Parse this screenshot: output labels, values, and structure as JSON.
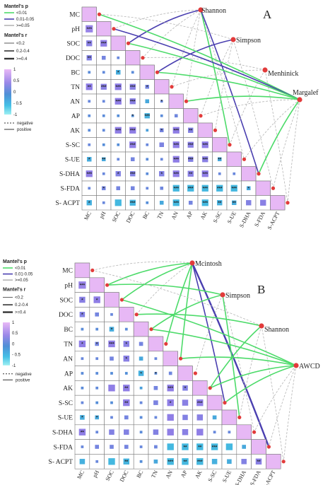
{
  "chart_data": [
    {
      "type": "heatmap",
      "panel": "A",
      "variables": [
        "MC",
        "pH",
        "SOC",
        "DOC",
        "BC",
        "TN",
        "AN",
        "AP",
        "AK",
        "S-SC",
        "S-UE",
        "S-DHA",
        "S-FDA",
        "S- ACPT"
      ],
      "x_tick_labels": [
        "MC",
        "pH",
        "SOC",
        "DOC",
        "BC",
        "TN",
        "AN",
        "AP",
        "AK",
        "S-SC",
        "S-UE",
        "S-DHA",
        "S-FDA",
        "S-ACPT"
      ],
      "correlations": [
        [
          1
        ],
        [
          0.55,
          1
        ],
        [
          0.45,
          0.5,
          1
        ],
        [
          0.4,
          0.3,
          0.2,
          1
        ],
        [
          0.1,
          0.15,
          -0.35,
          0.1,
          1
        ],
        [
          0.5,
          0.45,
          0.5,
          0.45,
          0.3,
          1
        ],
        [
          0.2,
          0.2,
          0.5,
          0.45,
          -0.3,
          0.2,
          1
        ],
        [
          0.1,
          0.1,
          0.05,
          0.02,
          -0.4,
          0.1,
          0.25,
          1
        ],
        [
          0.1,
          0.15,
          0.5,
          0.5,
          -0.2,
          0.3,
          0.5,
          0.4,
          1
        ],
        [
          0.2,
          0.05,
          0.05,
          0.5,
          0.2,
          0.35,
          0.5,
          0.45,
          0.5,
          1
        ],
        [
          -0.35,
          -0.3,
          0.2,
          0.3,
          0.1,
          0.2,
          0.5,
          0.4,
          0.45,
          -0.3,
          1
        ],
        [
          0.5,
          0.2,
          0.4,
          0.4,
          0.1,
          0.4,
          0.5,
          0.45,
          0.5,
          0.2,
          0.2,
          1
        ],
        [
          0.2,
          0.3,
          0.3,
          0.3,
          0.2,
          0.25,
          -0.5,
          -0.5,
          -0.5,
          -0.5,
          -0.5,
          -0.3,
          1
        ],
        [
          -0.4,
          0.2,
          -0.5,
          -0.45,
          0.05,
          -0.3,
          -0.5,
          0.3,
          -0.5,
          -0.4,
          -0.35,
          0.4,
          0.45,
          1
        ]
      ],
      "significance": [
        [
          ""
        ],
        [
          "***",
          ""
        ],
        [
          "**",
          "***",
          ""
        ],
        [
          "**",
          "",
          "",
          ""
        ],
        [
          "",
          "",
          "*",
          "",
          ""
        ],
        [
          "**",
          "***",
          "***",
          "***",
          "*",
          ""
        ],
        [
          "",
          "",
          "***",
          "***",
          "",
          "*",
          ""
        ],
        [
          "",
          "",
          "",
          "*",
          "***",
          "",
          "",
          ""
        ],
        [
          "",
          "",
          "***",
          "***",
          "",
          "*",
          "***",
          "**",
          ""
        ],
        [
          "",
          "",
          "",
          "***",
          "",
          "",
          "***",
          "***",
          "***",
          ""
        ],
        [
          "*",
          "**",
          "",
          "",
          "",
          "",
          "***",
          "***",
          "***",
          "**",
          ""
        ],
        [
          "***",
          "",
          "*",
          "***",
          "",
          "*",
          "***",
          "**",
          "***",
          "",
          "",
          ""
        ],
        [
          "",
          "*",
          "",
          "",
          "",
          "",
          "***",
          "***",
          "***",
          "***",
          "***",
          "*",
          ""
        ],
        [
          "*",
          "",
          "",
          "***",
          "",
          "",
          "***",
          "",
          "***",
          "**",
          "**",
          "",
          ""
        ]
      ],
      "nodes": [
        "Shannon",
        "Simpson",
        "Menhinick",
        "Margalef"
      ],
      "mantel_links": [
        {
          "from": "Shannon",
          "to": "pH",
          "p": ">=0.05",
          "r": "<0.2"
        },
        {
          "from": "Shannon",
          "to": "SOC",
          "p": "0.01-0.05",
          "r": "0.2-0.4"
        },
        {
          "from": "Shannon",
          "to": "DOC",
          "p": ">=0.05",
          "r": "<0.2"
        },
        {
          "from": "Shannon",
          "to": "TN",
          "p": ">=0.05",
          "r": "<0.2"
        },
        {
          "from": "Shannon",
          "to": "AN",
          "p": ">=0.05",
          "r": "<0.2"
        },
        {
          "from": "Shannon",
          "to": "S-SC",
          "p": "<0.01",
          "r": "0.2-0.4"
        },
        {
          "from": "Shannon",
          "to": "S-UE",
          "p": ">=0.05",
          "r": "<0.2"
        },
        {
          "from": "Shannon",
          "to": "S-DHA",
          "p": "0.01-0.05",
          "r": "0.2-0.4"
        },
        {
          "from": "Simpson",
          "to": "MC",
          "p": ">=0.05",
          "r": "<0.2"
        },
        {
          "from": "Simpson",
          "to": "BC",
          "p": "0.01-0.05",
          "r": "0.2-0.4"
        },
        {
          "from": "Simpson",
          "to": "AP",
          "p": ">=0.05",
          "r": "<0.2"
        },
        {
          "from": "Simpson",
          "to": "AK",
          "p": ">=0.05",
          "r": "<0.2"
        },
        {
          "from": "Simpson",
          "to": "S-FDA",
          "p": ">=0.05",
          "r": "<0.2"
        },
        {
          "from": "Menhinick",
          "to": "DOC",
          "p": ">=0.05",
          "r": "<0.2"
        },
        {
          "from": "Menhinick",
          "to": "TN",
          "p": ">=0.05",
          "r": "<0.2"
        },
        {
          "from": "Menhinick",
          "to": "S-SC",
          "p": ">=0.05",
          "r": "<0.2"
        },
        {
          "from": "Menhinick",
          "to": "S-ACPT",
          "p": ">=0.05",
          "r": "<0.2"
        },
        {
          "from": "Margalef",
          "to": "MC",
          "p": "<0.01",
          "r": "0.2-0.4"
        },
        {
          "from": "Margalef",
          "to": "pH",
          "p": "0.01-0.05",
          "r": "0.2-0.4"
        },
        {
          "from": "Margalef",
          "to": "SOC",
          "p": "<0.01",
          "r": "0.2-0.4"
        },
        {
          "from": "Margalef",
          "to": "BC",
          "p": "<0.01",
          "r": "0.2-0.4"
        },
        {
          "from": "Margalef",
          "to": "AN",
          "p": "<0.01",
          "r": "0.2-0.4"
        },
        {
          "from": "Margalef",
          "to": "AP",
          "p": ">=0.05",
          "r": "<0.2"
        },
        {
          "from": "Margalef",
          "to": "S-UE",
          "p": ">=0.05",
          "r": "<0.2"
        },
        {
          "from": "Margalef",
          "to": "S-DHA",
          "p": "<0.01",
          "r": "0.2-0.4"
        },
        {
          "from": "Margalef",
          "to": "S-FDA",
          "p": ">=0.05",
          "r": "<0.2"
        },
        {
          "from": "Margalef",
          "to": "S-ACPT",
          "p": ">=0.05",
          "r": "<0.2"
        }
      ]
    },
    {
      "type": "heatmap",
      "panel": "B",
      "variables": [
        "MC",
        "pH",
        "SOC",
        "DOC",
        "BC",
        "TN",
        "AN",
        "AP",
        "AK",
        "S-SC",
        "S-UE",
        "S-DHA",
        "S-FDA",
        "S- ACPT"
      ],
      "x_tick_labels": [
        "MC",
        "pH",
        "SOC",
        "DOC",
        "BC",
        "TN",
        "AN",
        "AP",
        "AK",
        "S-SC",
        "S-UE",
        "S-DHA",
        "S-FDA",
        "S-ACPT"
      ],
      "correlations": [
        [
          1
        ],
        [
          0.55,
          1
        ],
        [
          0.45,
          0.5,
          1
        ],
        [
          0.4,
          0.3,
          0.2,
          1
        ],
        [
          0.1,
          0.1,
          -0.35,
          0.1,
          1
        ],
        [
          0.5,
          0.3,
          0.5,
          0.45,
          0.3,
          1
        ],
        [
          0.2,
          0.2,
          0.3,
          0.45,
          -0.3,
          0.2,
          1
        ],
        [
          0.1,
          0.1,
          0.05,
          0.02,
          -0.4,
          0.1,
          0.25,
          1
        ],
        [
          0.1,
          0.15,
          0.5,
          0.5,
          -0.2,
          0.3,
          0.5,
          0.4,
          1
        ],
        [
          0.2,
          0.05,
          0.05,
          0.5,
          0.2,
          0.35,
          0.5,
          0.45,
          0.5,
          1
        ],
        [
          -0.35,
          -0.3,
          0.2,
          0.3,
          0.1,
          0.2,
          0.5,
          0.4,
          0.45,
          -0.3,
          1
        ],
        [
          0.5,
          0.2,
          0.4,
          0.4,
          0.1,
          0.4,
          0.5,
          0.45,
          0.5,
          0.2,
          0.2,
          1
        ],
        [
          0.2,
          0.3,
          0.3,
          0.3,
          0.2,
          0.25,
          -0.5,
          -0.5,
          -0.5,
          -0.5,
          -0.5,
          -0.3,
          1
        ],
        [
          -0.4,
          0.2,
          -0.5,
          -0.45,
          0.05,
          -0.3,
          -0.5,
          -0.5,
          -0.5,
          -0.4,
          -0.35,
          0.4,
          0.45,
          1
        ]
      ],
      "significance": [
        [
          ""
        ],
        [
          "***",
          ""
        ],
        [
          "*",
          "*",
          ""
        ],
        [
          "*",
          "",
          "",
          ""
        ],
        [
          "",
          "",
          "*",
          "",
          ""
        ],
        [
          "*",
          "*",
          "***",
          "*",
          ""
        ],
        [
          "",
          "",
          "",
          "*",
          "",
          ""
        ],
        [
          "",
          "",
          "",
          "",
          "*",
          "*",
          ""
        ],
        [
          "",
          "",
          "",
          "**",
          "",
          "",
          "***",
          "*",
          ""
        ],
        [
          "",
          "",
          "",
          "**",
          "",
          "",
          "*",
          "",
          "***",
          ""
        ],
        [
          "*",
          "*",
          "",
          "",
          "",
          "",
          "",
          "",
          "",
          ""
        ],
        [
          "**",
          "",
          "",
          "",
          "",
          "",
          "",
          "",
          "",
          "",
          ""
        ],
        [
          "",
          "",
          "",
          "",
          "",
          "",
          "",
          "**",
          "**",
          "***",
          "",
          ""
        ],
        [
          "",
          "",
          "",
          "**",
          "",
          "",
          "***",
          "**",
          "***",
          "",
          "",
          "",
          "**"
        ]
      ],
      "nodes": [
        "Mcintosh",
        "Simpson",
        "Shannon",
        "AWCD"
      ],
      "mantel_links": [
        {
          "from": "Mcintosh",
          "to": "MC",
          "p": ">=0.05",
          "r": "<0.2"
        },
        {
          "from": "Mcintosh",
          "to": "pH",
          "p": "<0.01",
          "r": "0.2-0.4"
        },
        {
          "from": "Mcintosh",
          "to": "SOC",
          "p": "<0.01",
          "r": "0.2-0.4"
        },
        {
          "from": "Mcintosh",
          "to": "DOC",
          "p": ">=0.05",
          "r": "<0.2"
        },
        {
          "from": "Mcintosh",
          "to": "TN",
          "p": "<0.01",
          "r": "0.2-0.4"
        },
        {
          "from": "Mcintosh",
          "to": "AN",
          "p": "<0.01",
          "r": "0.2-0.4"
        },
        {
          "from": "Mcintosh",
          "to": "S-SC",
          "p": "0.01-0.05",
          "r": "0.2-0.4"
        },
        {
          "from": "Mcintosh",
          "to": "S-FDA",
          "p": "0.01-0.05",
          "r": ">=0.4"
        },
        {
          "from": "Simpson",
          "to": "pH",
          "p": "<0.01",
          "r": "0.2-0.4"
        },
        {
          "from": "Simpson",
          "to": "BC",
          "p": "<0.01",
          "r": "0.2-0.4"
        },
        {
          "from": "Simpson",
          "to": "AP",
          "p": ">=0.05",
          "r": "<0.2"
        },
        {
          "from": "Simpson",
          "to": "S-UE",
          "p": "<0.01",
          "r": "0.2-0.4"
        },
        {
          "from": "Simpson",
          "to": "S-DHA",
          "p": ">=0.05",
          "r": "<0.2"
        },
        {
          "from": "Shannon",
          "to": "MC",
          "p": ">=0.05",
          "r": "<0.2"
        },
        {
          "from": "Shannon",
          "to": "DOC",
          "p": "<0.01",
          "r": "0.2-0.4"
        },
        {
          "from": "Shannon",
          "to": "AK",
          "p": "<0.01",
          "r": "0.2-0.4"
        },
        {
          "from": "Shannon",
          "to": "S-UE",
          "p": ">=0.05",
          "r": "<0.2"
        },
        {
          "from": "Shannon",
          "to": "S-ACPT",
          "p": ">=0.05",
          "r": "<0.2"
        },
        {
          "from": "AWCD",
          "to": "SOC",
          "p": "<0.01",
          "r": "0.2-0.4"
        },
        {
          "from": "AWCD",
          "to": "BC",
          "p": "<0.01",
          "r": "0.2-0.4"
        },
        {
          "from": "AWCD",
          "to": "AN",
          "p": "<0.01",
          "r": "0.2-0.4"
        },
        {
          "from": "AWCD",
          "to": "AK",
          "p": "<0.01",
          "r": "0.2-0.4"
        },
        {
          "from": "AWCD",
          "to": "S-SC",
          "p": "<0.01",
          "r": "0.2-0.4"
        },
        {
          "from": "AWCD",
          "to": "S-DHA",
          "p": ">=0.05",
          "r": "<0.2"
        },
        {
          "from": "AWCD",
          "to": "S-FDA",
          "p": ">=0.05",
          "r": "<0.2"
        },
        {
          "from": "AWCD",
          "to": "S-ACPT",
          "p": ">=0.05",
          "r": "<0.2"
        }
      ]
    }
  ],
  "legend": {
    "p_title": "Mantel's p",
    "p_items": [
      {
        "label": "<0.01",
        "color": "#4ddb6a"
      },
      {
        "label": "0.01-0.05",
        "color": "#4a3fb0"
      },
      {
        "label": ">=0.05",
        "color": "#b5b5b5"
      }
    ],
    "r_title": "Mantel's r",
    "r_items": [
      "<0.2",
      "0.2-0.4",
      ">=0.4"
    ],
    "colorbar_ticks": [
      "1",
      "0.5",
      "0",
      "- 0.5",
      "-1"
    ],
    "style_items": [
      "negative",
      "positive"
    ]
  },
  "colors": {
    "high": "#e7b8f5",
    "mid_pos": "#8f7ee6",
    "mid": "#4f8fd6",
    "mid_neg": "#44b8e0",
    "low": "#8ee8ee",
    "node": "#e23b3b",
    "grid": "#7c7c7c"
  }
}
